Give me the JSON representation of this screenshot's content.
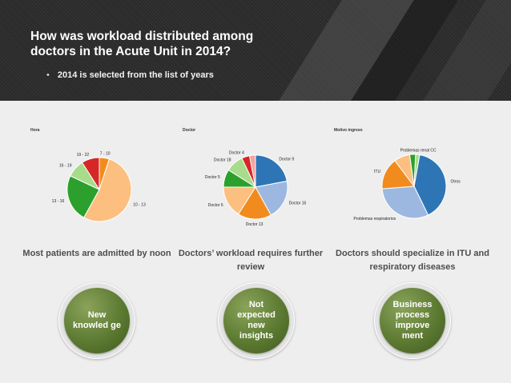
{
  "slide": {
    "title": "How was workload distributed among doctors in the Acute Unit in 2014?",
    "bullet": "2014 is selected from the list of years"
  },
  "colors": {
    "header_bg": "#2a2a2a",
    "circle_green": "#5d7a32",
    "blue": "#2e75b6",
    "light_blue": "#9cb8e0",
    "orange": "#f28b1e",
    "peach": "#fcbf7f",
    "green": "#2ca02c",
    "light_green": "#a6dc8a",
    "red": "#d62728"
  },
  "insights": [
    {
      "text": "Most patients are admitted by noon",
      "circle": "New knowled ge"
    },
    {
      "text": "Doctors’ workload requires further review",
      "circle": "Not expected new insights"
    },
    {
      "text": "Doctors should specialize in ITU and respiratory diseases",
      "circle": "Business process improve ment"
    }
  ],
  "chart_data": [
    {
      "type": "pie",
      "title": "Hora",
      "slices": [
        {
          "label": "10 - 13",
          "value": 53,
          "color": "#fcbf7f"
        },
        {
          "label": "13 - 16",
          "value": 24,
          "color": "#2ca02c"
        },
        {
          "label": "16 - 19",
          "value": 9,
          "color": "#a6dc8a"
        },
        {
          "label": "19 - 22",
          "value": 9,
          "color": "#d62728"
        },
        {
          "label": "7 - 10",
          "value": 5,
          "color": "#f28b1e"
        }
      ]
    },
    {
      "type": "pie",
      "title": "Doctor",
      "slices": [
        {
          "label": "Doctor 9",
          "value": 22,
          "color": "#2e75b6"
        },
        {
          "label": "Doctor 16",
          "value": 20,
          "color": "#9cb8e0"
        },
        {
          "label": "Doctor 13",
          "value": 17,
          "color": "#f28b1e"
        },
        {
          "label": "Doctor 6",
          "value": 16,
          "color": "#fcbf7f"
        },
        {
          "label": "Doctor 5",
          "value": 9,
          "color": "#2ca02c"
        },
        {
          "label": "Doctor 18",
          "value": 9,
          "color": "#a6dc8a"
        },
        {
          "label": "Doctor 4",
          "value": 4,
          "color": "#d62728"
        },
        {
          "label": "",
          "value": 3,
          "color": "#f5a3a3"
        }
      ]
    },
    {
      "type": "pie",
      "title": "Motivo ingreso",
      "slices": [
        {
          "label": "Otros",
          "value": 40,
          "color": "#2e75b6"
        },
        {
          "label": "Problemas respiratorios",
          "value": 31,
          "color": "#9cb8e0"
        },
        {
          "label": "ITU",
          "value": 16,
          "color": "#f28b1e"
        },
        {
          "label": "",
          "value": 8,
          "color": "#fcbf7f"
        },
        {
          "label": "",
          "value": 3,
          "color": "#2ca02c"
        },
        {
          "label": "Problemas renal CC",
          "value": 2,
          "color": "#a6dc8a"
        }
      ]
    }
  ]
}
